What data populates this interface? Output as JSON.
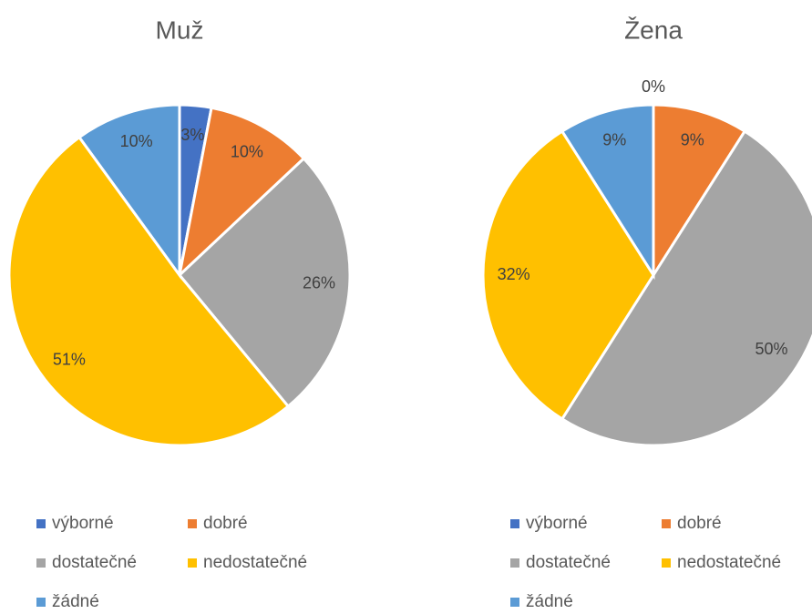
{
  "chart_data": [
    {
      "type": "pie",
      "title": "Muž",
      "categories": [
        "výborné",
        "dobré",
        "dostatečné",
        "nedostatečné",
        "žádné"
      ],
      "values": [
        3,
        10,
        26,
        51,
        10
      ],
      "value_labels": [
        "3%",
        "10%",
        "26%",
        "51%",
        "10%"
      ],
      "colors": [
        "#4472c4",
        "#ed7d31",
        "#a5a5a5",
        "#ffc000",
        "#5b9bd5"
      ]
    },
    {
      "type": "pie",
      "title": "Žena",
      "categories": [
        "výborné",
        "dobré",
        "dostatečné",
        "nedostatečné",
        "žádné"
      ],
      "values": [
        0,
        9,
        50,
        32,
        9
      ],
      "value_labels": [
        "0%",
        "9%",
        "50%",
        "32%",
        "9%"
      ],
      "colors": [
        "#4472c4",
        "#ed7d31",
        "#a5a5a5",
        "#ffc000",
        "#5b9bd5"
      ]
    }
  ]
}
